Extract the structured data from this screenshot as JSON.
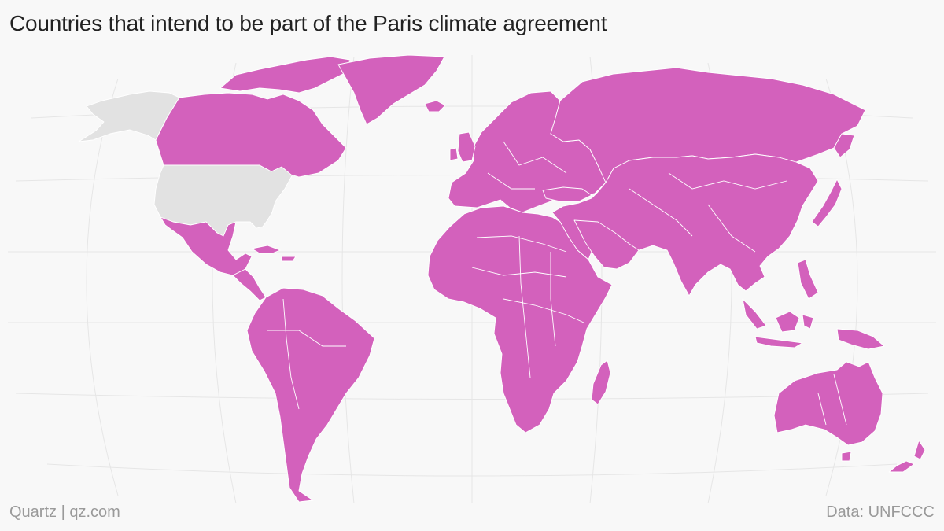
{
  "header": {
    "title": "Countries that intend to be part of the Paris climate agreement"
  },
  "footer": {
    "credit": "Quartz | qz.com",
    "source": "Data: UNFCCC"
  },
  "legend_colors": {
    "party": "#d361bc",
    "non_party": "#e2e2e2"
  },
  "map_data": {
    "non_party_countries": [
      "United States"
    ],
    "party_regions": [
      "Canada",
      "Greenland",
      "Mexico",
      "Central America",
      "Caribbean",
      "South America",
      "Europe",
      "Africa",
      "Middle East",
      "Russia",
      "Central Asia",
      "South Asia",
      "China",
      "Southeast Asia",
      "Japan",
      "Indonesia",
      "Australia",
      "New Zealand",
      "Madagascar"
    ]
  }
}
